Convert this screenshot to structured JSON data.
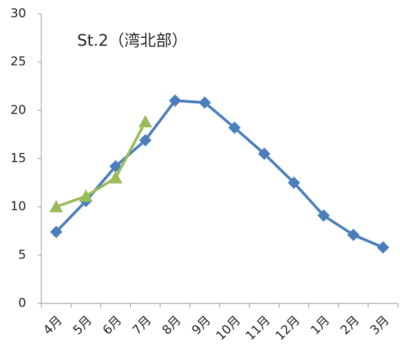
{
  "chart_data": {
    "type": "line",
    "title": "St.2（湾北部）",
    "categories": [
      "4月",
      "5月",
      "6月",
      "7月",
      "8月",
      "9月",
      "10月",
      "11月",
      "12月",
      "1月",
      "2月",
      "3月"
    ],
    "series": [
      {
        "color": "#4a7ebb",
        "marker": "diamond",
        "values": [
          7.4,
          10.6,
          14.2,
          16.9,
          21.0,
          20.8,
          18.2,
          15.5,
          12.5,
          9.1,
          7.1,
          5.8
        ]
      },
      {
        "color": "#9bbb59",
        "marker": "triangle",
        "values": [
          10.0,
          11.1,
          13.0,
          18.8,
          null,
          null,
          null,
          null,
          null,
          null,
          null,
          null
        ]
      }
    ],
    "ylim": [
      0,
      30
    ],
    "yticks": [
      0,
      5,
      10,
      15,
      20,
      25,
      30
    ],
    "grid": false
  }
}
